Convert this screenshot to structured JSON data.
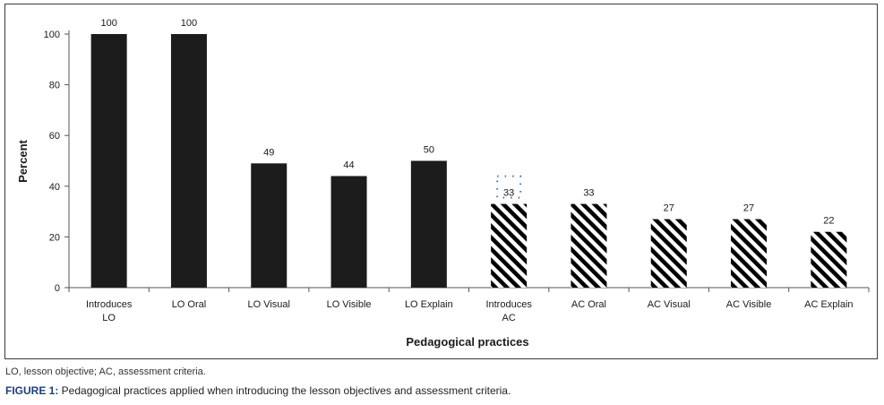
{
  "chart_data": {
    "type": "bar",
    "categories": [
      [
        "Introduces",
        "LO"
      ],
      [
        "LO Oral"
      ],
      [
        "LO Visual"
      ],
      [
        "LO Visible"
      ],
      [
        "LO Explain"
      ],
      [
        "Introduces",
        "AC"
      ],
      [
        "AC Oral"
      ],
      [
        "AC Visual"
      ],
      [
        "AC Visible"
      ],
      [
        "AC Explain"
      ]
    ],
    "values": [
      100,
      100,
      49,
      44,
      50,
      33,
      33,
      27,
      27,
      22
    ],
    "fills": [
      "solid",
      "solid",
      "solid",
      "solid",
      "solid",
      "hatched",
      "hatched",
      "hatched",
      "hatched",
      "hatched"
    ],
    "data_labels": [
      "100",
      "100",
      "49",
      "44",
      "50",
      "33",
      "33",
      "27",
      "27",
      "22"
    ],
    "xlabel": "Pedagogical practices",
    "ylabel": "Percent",
    "ylim": [
      0,
      100
    ],
    "yticks": [
      0,
      20,
      40,
      60,
      80,
      100
    ],
    "grid": false,
    "colors": {
      "bar": "#1c1c1c",
      "hatch": "#000000",
      "selection": "#3a6fc4"
    }
  },
  "footnote": "LO, lesson objective; AC, assessment criteria.",
  "caption": {
    "label": "FIGURE 1:",
    "text": " Pedagogical practices applied when introducing the lesson objectives and assessment criteria."
  }
}
